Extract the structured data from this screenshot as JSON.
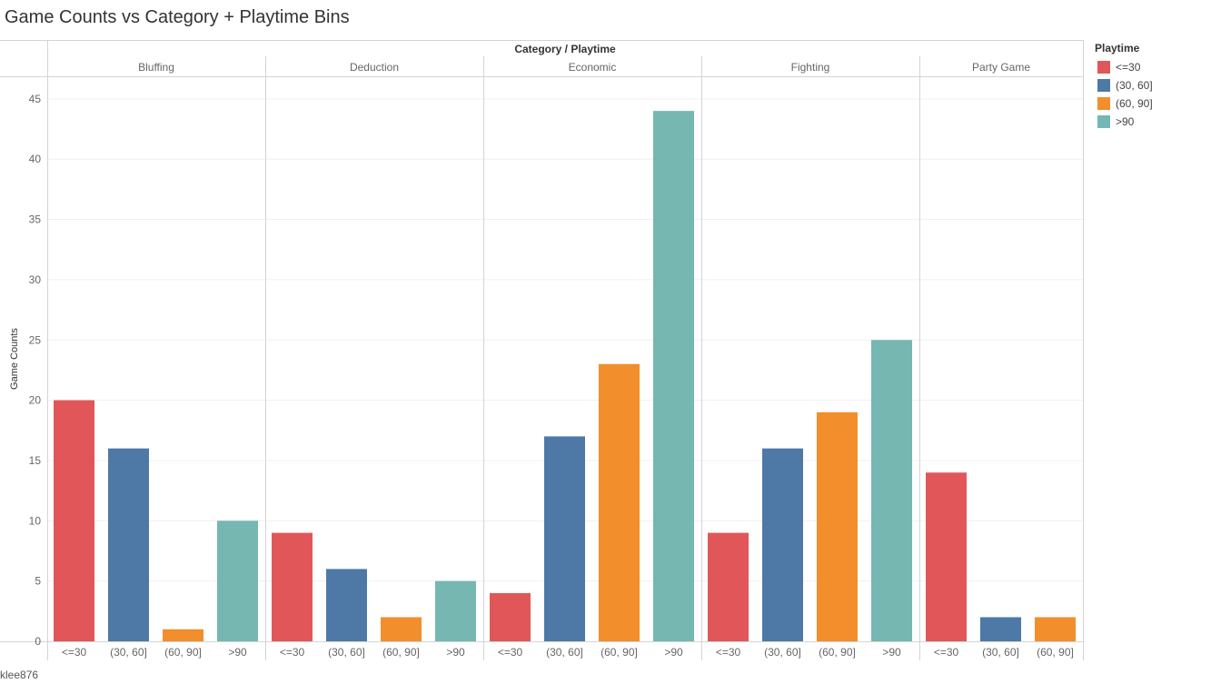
{
  "title": "Game Counts vs Category + Playtime Bins",
  "author": "klee876",
  "legend": {
    "title": "Playtime",
    "items": [
      {
        "label": "<=30",
        "color": "#e15759"
      },
      {
        "label": "(30, 60]",
        "color": "#4e79a7"
      },
      {
        "label": "(60, 90]",
        "color": "#f28e2b"
      },
      {
        "label": ">90",
        "color": "#76b7b2"
      }
    ]
  },
  "chart_data": {
    "type": "bar",
    "title": "Game Counts vs Category + Playtime Bins",
    "header": "Category / Playtime",
    "ylabel": "Game Counts",
    "xlabel": "",
    "ylim": [
      0,
      45
    ],
    "yticks": [
      0,
      5,
      10,
      15,
      20,
      25,
      30,
      35,
      40,
      45
    ],
    "grid": true,
    "categories": [
      "Bluffing",
      "Deduction",
      "Economic",
      "Fighting",
      "Party Game"
    ],
    "subcategories": [
      "<=30",
      "(30, 60]",
      "(60, 90]",
      ">90"
    ],
    "colors": {
      "<=30": "#e15759",
      "(30, 60]": "#4e79a7",
      "(60, 90]": "#f28e2b",
      ">90": "#76b7b2"
    },
    "groups": [
      {
        "category": "Bluffing",
        "bars": [
          {
            "playtime": "<=30",
            "value": 20
          },
          {
            "playtime": "(30, 60]",
            "value": 16
          },
          {
            "playtime": "(60, 90]",
            "value": 1
          },
          {
            "playtime": ">90",
            "value": 10
          }
        ]
      },
      {
        "category": "Deduction",
        "bars": [
          {
            "playtime": "<=30",
            "value": 9
          },
          {
            "playtime": "(30, 60]",
            "value": 6
          },
          {
            "playtime": "(60, 90]",
            "value": 2
          },
          {
            "playtime": ">90",
            "value": 5
          }
        ]
      },
      {
        "category": "Economic",
        "bars": [
          {
            "playtime": "<=30",
            "value": 4
          },
          {
            "playtime": "(30, 60]",
            "value": 17
          },
          {
            "playtime": "(60, 90]",
            "value": 23
          },
          {
            "playtime": ">90",
            "value": 44
          }
        ]
      },
      {
        "category": "Fighting",
        "bars": [
          {
            "playtime": "<=30",
            "value": 9
          },
          {
            "playtime": "(30, 60]",
            "value": 16
          },
          {
            "playtime": "(60, 90]",
            "value": 19
          },
          {
            "playtime": ">90",
            "value": 25
          }
        ]
      },
      {
        "category": "Party Game",
        "bars": [
          {
            "playtime": "<=30",
            "value": 14
          },
          {
            "playtime": "(30, 60]",
            "value": 2
          },
          {
            "playtime": "(60, 90]",
            "value": 2
          }
        ]
      }
    ]
  }
}
